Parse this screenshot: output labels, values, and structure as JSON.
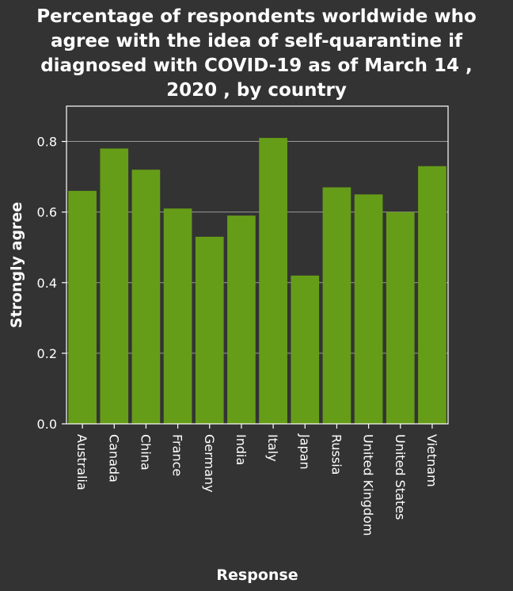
{
  "chart_data": {
    "type": "bar",
    "title_lines": [
      "Percentage of respondents worldwide who",
      "agree with the idea of self-quarantine if",
      "diagnosed with COVID-19 as of March 14 ,",
      "2020 , by country"
    ],
    "xlabel": "Response",
    "ylabel": "Strongly agree",
    "categories": [
      "Australia",
      "Canada",
      "China",
      "France",
      "Germany",
      "India",
      "Italy",
      "Japan",
      "Russia",
      "United Kingdom",
      "United States",
      "Vietnam"
    ],
    "series": [
      {
        "values": [
          0.66,
          0.78,
          0.72,
          0.61,
          0.53,
          0.59,
          0.81,
          0.42,
          0.67,
          0.65,
          0.6,
          0.73
        ]
      }
    ],
    "ylim": [
      0,
      0.9
    ],
    "yticks": [
      "0.0",
      "0.2",
      "0.4",
      "0.6",
      "0.8"
    ],
    "grid": true,
    "legend": "none",
    "colors": {
      "background": "#333333",
      "bar": "#669d18",
      "grid": "#9a9a9a",
      "axis": "#ffffff",
      "text": "#ffffff"
    }
  }
}
